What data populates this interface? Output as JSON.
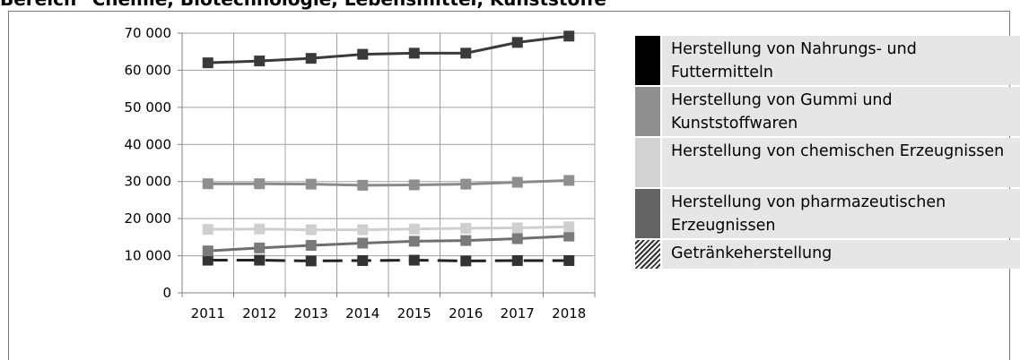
{
  "heading": "Bereich \"Chemie, Biotechnologie, Lebensmittel, Kunststoffe\"",
  "chart_data": {
    "type": "line",
    "categories": [
      "2011",
      "2012",
      "2013",
      "2014",
      "2015",
      "2016",
      "2017",
      "2018"
    ],
    "ylim": [
      0,
      70000
    ],
    "yticks": [
      0,
      10000,
      20000,
      30000,
      40000,
      50000,
      60000,
      70000
    ],
    "ytick_labels": [
      "0",
      "10 000",
      "20 000",
      "30 000",
      "40 000",
      "50 000",
      "60 000",
      "70 000"
    ],
    "grid": true,
    "legend_position": "right",
    "series": [
      {
        "name": "Herstellung von Nahrungs- und Futtermitteln",
        "color": "#3a3a3a",
        "marker_color": "#3a3a3a",
        "swatch": "#000000",
        "dashed": false,
        "values": [
          62000,
          62500,
          63200,
          64300,
          64600,
          64600,
          67500,
          69200
        ]
      },
      {
        "name": "Herstellung von Gummi und Kunststoffwaren",
        "color": "#8a8a8a",
        "marker_color": "#8f8f8f",
        "swatch": "#8f8f8f",
        "dashed": false,
        "values": [
          29400,
          29400,
          29300,
          29000,
          29100,
          29300,
          29800,
          30300
        ]
      },
      {
        "name": "Herstellung von chemischen Erzeugnissen",
        "color": "#cfcfcf",
        "marker_color": "#cfcfcf",
        "swatch": "#d2d2d2",
        "dashed": false,
        "values": [
          17100,
          17200,
          17000,
          17000,
          17200,
          17400,
          17500,
          17800
        ]
      },
      {
        "name": "Herstellung von pharmazeutischen Erzeugnissen",
        "color": "#6e6e6e",
        "marker_color": "#7a7a7a",
        "swatch": "#636363",
        "dashed": false,
        "values": [
          11300,
          12100,
          12800,
          13400,
          13900,
          14100,
          14600,
          15300
        ]
      },
      {
        "name": "Getränkeherstellung",
        "color": "#222222",
        "marker_color": "#333333",
        "swatch": "hatch",
        "dashed": true,
        "values": [
          8800,
          8800,
          8600,
          8700,
          8800,
          8600,
          8700,
          8700
        ]
      }
    ]
  }
}
